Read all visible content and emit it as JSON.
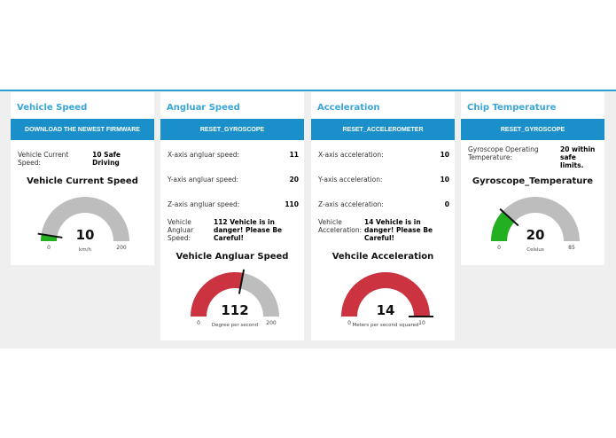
{
  "accent": "#1a8fc9",
  "cards": [
    {
      "title": "Vehicle Speed",
      "button": "DOWNLOAD THE NEWEST FIRMWARE",
      "rows": [
        {
          "label": "Vehicle Current Speed:",
          "value": "10 Safe Driving"
        }
      ],
      "gauge": {
        "title": "Vehicle Current Speed",
        "value": 10,
        "min": 0,
        "max": 200,
        "unit": "km/h",
        "color": "#22b020",
        "min_label": "0",
        "max_label": "200",
        "value_label": "10"
      }
    },
    {
      "title": "Angluar Speed",
      "button": "RESET_GYROSCOPE",
      "rows": [
        {
          "label": "X-axis angluar speed:",
          "value": "11"
        },
        {
          "label": "Y-axis angluar speed:",
          "value": "20"
        },
        {
          "label": "Z-axis angluar speed:",
          "value": "110"
        },
        {
          "label": "Vehicle Angluar Speed:",
          "value": "112 Vehicle is in danger! Please Be Careful!"
        }
      ],
      "gauge": {
        "title": "Vehicle Angluar Speed",
        "value": 112,
        "min": 0,
        "max": 200,
        "unit": "Degree per second",
        "color": "#cc3340",
        "min_label": "0",
        "max_label": "200",
        "value_label": "112"
      }
    },
    {
      "title": "Acceleration",
      "button": "RESET_ACCELEROMETER",
      "rows": [
        {
          "label": "X-axis acceleration:",
          "value": "10"
        },
        {
          "label": "Y-axis acceleration:",
          "value": "10"
        },
        {
          "label": "Z-axis acceleration:",
          "value": "0"
        },
        {
          "label": "Vehicle Acceleration:",
          "value": "14 Vehicle is in danger! Please Be Careful!"
        }
      ],
      "gauge": {
        "title": "Vehcile Acceleration",
        "value": 14,
        "min": 0,
        "max": 10,
        "unit": "Meters per second squared",
        "color": "#cc3340",
        "min_label": "0",
        "max_label": "10",
        "value_label": "14"
      }
    },
    {
      "title": "Chip Temperature",
      "button": "RESET_GYROSCOPE",
      "rows": [
        {
          "label": "Gyroscope Operating Temperature:",
          "value": "20 within safe limits."
        }
      ],
      "gauge": {
        "title": "Gyroscope_Temperature",
        "value": 20,
        "min": 0,
        "max": 85,
        "unit": "Celsius",
        "color": "#22b020",
        "min_label": "0",
        "max_label": "85",
        "value_label": "20"
      }
    }
  ]
}
